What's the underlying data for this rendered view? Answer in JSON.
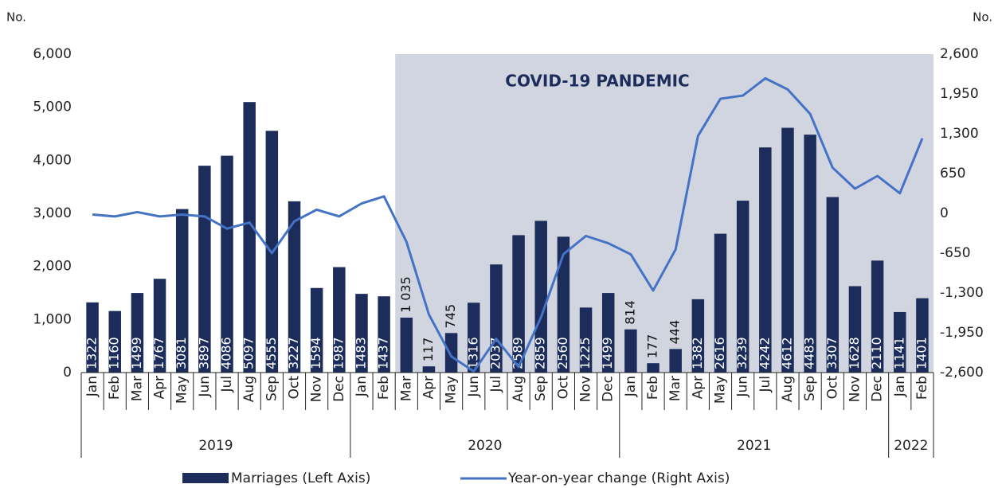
{
  "chart_data": {
    "type": "bar_line",
    "y_label": "No.",
    "y2_label": "No.",
    "annotation": "COVID-19 PANDEMIC",
    "categories": [
      "Jan",
      "Feb",
      "Mar",
      "Apr",
      "May",
      "Jun",
      "Jul",
      "Aug",
      "Sep",
      "Oct",
      "Nov",
      "Dec",
      "Jan",
      "Feb",
      "Mar",
      "Apr",
      "May",
      "Jun",
      "Jul",
      "Aug",
      "Sep",
      "Oct",
      "Nov",
      "Dec",
      "Jan",
      "Feb",
      "Mar",
      "Apr",
      "May",
      "Jun",
      "Jul",
      "Aug",
      "Sep",
      "Oct",
      "Nov",
      "Dec",
      "Jan",
      "Feb"
    ],
    "x_groups": [
      "2019",
      "2020",
      "2021",
      "2022"
    ],
    "series": [
      {
        "name": "Marriages (Left Axis)",
        "color": "#1c2d5c",
        "values": [
          1322,
          1160,
          1499,
          1767,
          3081,
          3897,
          4086,
          5097,
          4555,
          3227,
          1594,
          1987,
          1483,
          1437,
          1035,
          117,
          745,
          1316,
          2037,
          2589,
          2859,
          2560,
          1225,
          1499,
          814,
          177,
          444,
          1382,
          2616,
          3239,
          4242,
          4612,
          4483,
          3307,
          1628,
          2110,
          1141,
          1401
        ],
        "value_labels": [
          "1322",
          "1160",
          "1499",
          "1767",
          "3081",
          "3897",
          "4086",
          "5097",
          "4555",
          "3227",
          "1594",
          "1987",
          "1483",
          "1437",
          "1 035",
          "117",
          "745",
          "1316",
          "2037",
          "2589",
          "2859",
          "2560",
          "1225",
          "1499",
          "814",
          "177",
          "444",
          "1382",
          "2616",
          "3239",
          "4242",
          "4612",
          "4483",
          "3307",
          "1628",
          "2110",
          "1141",
          "1401"
        ]
      },
      {
        "name": "Year-on-year change (Right Axis)",
        "color": "#4472c4",
        "axis": "y2",
        "values": [
          -20,
          -50,
          20,
          -50,
          -20,
          -50,
          -250,
          -150,
          -650,
          -130,
          60,
          -50,
          161,
          277,
          -464,
          -1650,
          -2336,
          -2581,
          -2049,
          -2508,
          -1696,
          -667,
          -369,
          -488,
          -669,
          -1260,
          -591,
          1265,
          1871,
          1923,
          2205,
          2023,
          1624,
          747,
          403,
          611,
          327,
          1224
        ]
      }
    ],
    "ylim": [
      0,
      6000
    ],
    "yticks": [
      0,
      {
        "value": 1000,
        "label": "1,000"
      },
      {
        "value": 2000,
        "label": "2,000"
      },
      {
        "value": 3000,
        "label": "3,000"
      },
      {
        "value": 4000,
        "label": "4,000"
      },
      {
        "value": 5000,
        "label": "5,000"
      },
      {
        "value": 6000,
        "label": "6,000"
      }
    ],
    "y2lim": [
      -2600,
      2600
    ],
    "y2ticks": [
      {
        "value": -2600,
        "label": "-2,600"
      },
      {
        "value": -1950,
        "label": "-1,950"
      },
      {
        "value": -1300,
        "label": "-1,300"
      },
      -650,
      0,
      650,
      {
        "value": 1300,
        "label": "1,300"
      },
      {
        "value": 1950,
        "label": "1,950"
      },
      {
        "value": 2600,
        "label": "2,600"
      }
    ]
  }
}
